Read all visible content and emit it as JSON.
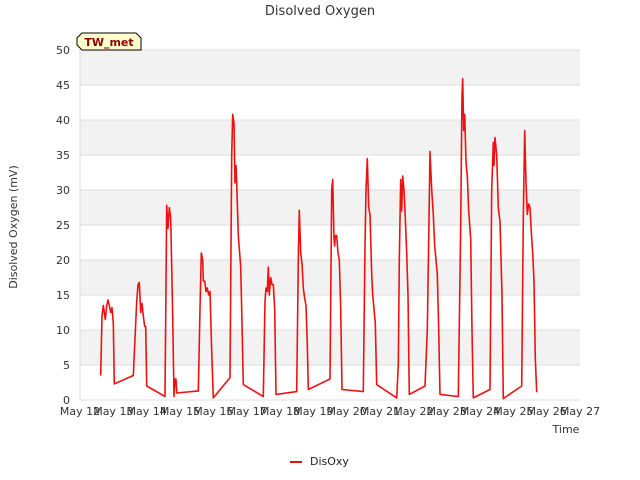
{
  "chart_data": {
    "type": "line",
    "title": "Disolved Oxygen",
    "xlabel": "Time",
    "ylabel": "Disolved Oxygen (mV)",
    "badge": "TW_met",
    "ylim": [
      0,
      50
    ],
    "yticks": [
      0,
      5,
      10,
      15,
      20,
      25,
      30,
      35,
      40,
      45,
      50
    ],
    "xlim": [
      12,
      27
    ],
    "xticks": [
      {
        "v": 12,
        "label": "May 12"
      },
      {
        "v": 13,
        "label": "May 13"
      },
      {
        "v": 14,
        "label": "May 14"
      },
      {
        "v": 15,
        "label": "May 15"
      },
      {
        "v": 16,
        "label": "May 16"
      },
      {
        "v": 17,
        "label": "May 17"
      },
      {
        "v": 18,
        "label": "May 18"
      },
      {
        "v": 19,
        "label": "May 19"
      },
      {
        "v": 20,
        "label": "May 20"
      },
      {
        "v": 21,
        "label": "May 21"
      },
      {
        "v": 22,
        "label": "May 22"
      },
      {
        "v": 23,
        "label": "May 23"
      },
      {
        "v": 24,
        "label": "May 24"
      },
      {
        "v": 25,
        "label": "May 25"
      },
      {
        "v": 26,
        "label": "May 26"
      },
      {
        "v": 27,
        "label": "May 27"
      }
    ],
    "grid": true,
    "legend_position": "bottom-center",
    "series": [
      {
        "name": "DisOxy",
        "color": "#ee1111",
        "points": [
          [
            12.62,
            3.5
          ],
          [
            12.66,
            12.0
          ],
          [
            12.7,
            13.5
          ],
          [
            12.76,
            11.5
          ],
          [
            12.8,
            13.5
          ],
          [
            12.84,
            14.3
          ],
          [
            12.88,
            13.5
          ],
          [
            12.92,
            12.5
          ],
          [
            12.96,
            13.2
          ],
          [
            13.0,
            11.0
          ],
          [
            13.03,
            2.3
          ],
          [
            13.6,
            3.5
          ],
          [
            13.7,
            14.0
          ],
          [
            13.74,
            16.5
          ],
          [
            13.78,
            16.8
          ],
          [
            13.82,
            12.5
          ],
          [
            13.86,
            13.8
          ],
          [
            13.9,
            12.0
          ],
          [
            13.94,
            10.5
          ],
          [
            13.97,
            10.5
          ],
          [
            14.0,
            2.0
          ],
          [
            14.55,
            0.5
          ],
          [
            14.6,
            27.8
          ],
          [
            14.64,
            24.5
          ],
          [
            14.68,
            27.5
          ],
          [
            14.72,
            26.0
          ],
          [
            14.78,
            12.0
          ],
          [
            14.82,
            0.5
          ],
          [
            14.85,
            3.0
          ],
          [
            14.88,
            3.0
          ],
          [
            14.9,
            1.0
          ],
          [
            15.55,
            1.3
          ],
          [
            15.6,
            13.0
          ],
          [
            15.64,
            21.0
          ],
          [
            15.68,
            20.0
          ],
          [
            15.7,
            17.0
          ],
          [
            15.74,
            17.0
          ],
          [
            15.78,
            15.5
          ],
          [
            15.82,
            16.0
          ],
          [
            15.86,
            15.0
          ],
          [
            15.9,
            15.5
          ],
          [
            15.95,
            7.0
          ],
          [
            16.0,
            0.3
          ],
          [
            16.5,
            3.2
          ],
          [
            16.55,
            35.0
          ],
          [
            16.58,
            40.8
          ],
          [
            16.62,
            39.5
          ],
          [
            16.65,
            31.0
          ],
          [
            16.68,
            33.5
          ],
          [
            16.7,
            31.0
          ],
          [
            16.75,
            23.5
          ],
          [
            16.82,
            19.0
          ],
          [
            16.86,
            11.0
          ],
          [
            16.9,
            2.2
          ],
          [
            17.5,
            0.5
          ],
          [
            17.55,
            14.0
          ],
          [
            17.58,
            16.0
          ],
          [
            17.62,
            15.5
          ],
          [
            17.65,
            19.0
          ],
          [
            17.68,
            15.0
          ],
          [
            17.72,
            17.5
          ],
          [
            17.76,
            16.5
          ],
          [
            17.8,
            16.5
          ],
          [
            17.84,
            13.0
          ],
          [
            17.88,
            0.8
          ],
          [
            18.5,
            1.2
          ],
          [
            18.55,
            20.0
          ],
          [
            18.58,
            27.1
          ],
          [
            18.62,
            21.0
          ],
          [
            18.66,
            19.5
          ],
          [
            18.7,
            16.0
          ],
          [
            18.74,
            14.5
          ],
          [
            18.78,
            13.5
          ],
          [
            18.82,
            8.0
          ],
          [
            18.85,
            1.5
          ],
          [
            19.5,
            3.0
          ],
          [
            19.55,
            30.0
          ],
          [
            19.58,
            31.5
          ],
          [
            19.62,
            23.0
          ],
          [
            19.64,
            22.0
          ],
          [
            19.66,
            23.5
          ],
          [
            19.7,
            23.5
          ],
          [
            19.74,
            21.0
          ],
          [
            19.78,
            20.0
          ],
          [
            19.82,
            13.0
          ],
          [
            19.86,
            1.5
          ],
          [
            20.5,
            1.2
          ],
          [
            20.55,
            22.0
          ],
          [
            20.58,
            30.0
          ],
          [
            20.62,
            34.5
          ],
          [
            20.66,
            27.5
          ],
          [
            20.7,
            26.5
          ],
          [
            20.75,
            18.0
          ],
          [
            20.78,
            15.0
          ],
          [
            20.82,
            13.0
          ],
          [
            20.86,
            11.0
          ],
          [
            20.9,
            2.2
          ],
          [
            21.5,
            0.3
          ],
          [
            21.55,
            5.0
          ],
          [
            21.58,
            20.0
          ],
          [
            21.62,
            31.5
          ],
          [
            21.65,
            27.0
          ],
          [
            21.68,
            32.0
          ],
          [
            21.72,
            30.0
          ],
          [
            21.76,
            26.0
          ],
          [
            21.8,
            21.0
          ],
          [
            21.84,
            15.0
          ],
          [
            21.88,
            0.8
          ],
          [
            22.35,
            2.0
          ],
          [
            22.42,
            10.0
          ],
          [
            22.46,
            23.0
          ],
          [
            22.5,
            35.5
          ],
          [
            22.55,
            30.0
          ],
          [
            22.6,
            26.5
          ],
          [
            22.64,
            22.0
          ],
          [
            22.68,
            20.0
          ],
          [
            22.72,
            18.0
          ],
          [
            22.76,
            10.0
          ],
          [
            22.8,
            0.8
          ],
          [
            23.35,
            0.5
          ],
          [
            23.42,
            25.0
          ],
          [
            23.46,
            43.5
          ],
          [
            23.48,
            45.9
          ],
          [
            23.51,
            38.5
          ],
          [
            23.54,
            40.8
          ],
          [
            23.58,
            34.0
          ],
          [
            23.62,
            32.0
          ],
          [
            23.66,
            27.0
          ],
          [
            23.72,
            23.0
          ],
          [
            23.76,
            10.0
          ],
          [
            23.8,
            0.3
          ],
          [
            24.3,
            1.5
          ],
          [
            24.35,
            30.0
          ],
          [
            24.4,
            36.8
          ],
          [
            24.42,
            33.5
          ],
          [
            24.45,
            37.5
          ],
          [
            24.5,
            35.0
          ],
          [
            24.55,
            27.5
          ],
          [
            24.6,
            25.5
          ],
          [
            24.66,
            15.0
          ],
          [
            24.7,
            0.2
          ],
          [
            25.25,
            2.0
          ],
          [
            25.3,
            26.0
          ],
          [
            25.34,
            38.5
          ],
          [
            25.38,
            31.0
          ],
          [
            25.42,
            26.5
          ],
          [
            25.46,
            28.0
          ],
          [
            25.5,
            27.5
          ],
          [
            25.54,
            24.0
          ],
          [
            25.58,
            21.0
          ],
          [
            25.62,
            17.0
          ],
          [
            25.66,
            6.0
          ],
          [
            25.7,
            1.1
          ]
        ]
      }
    ]
  }
}
